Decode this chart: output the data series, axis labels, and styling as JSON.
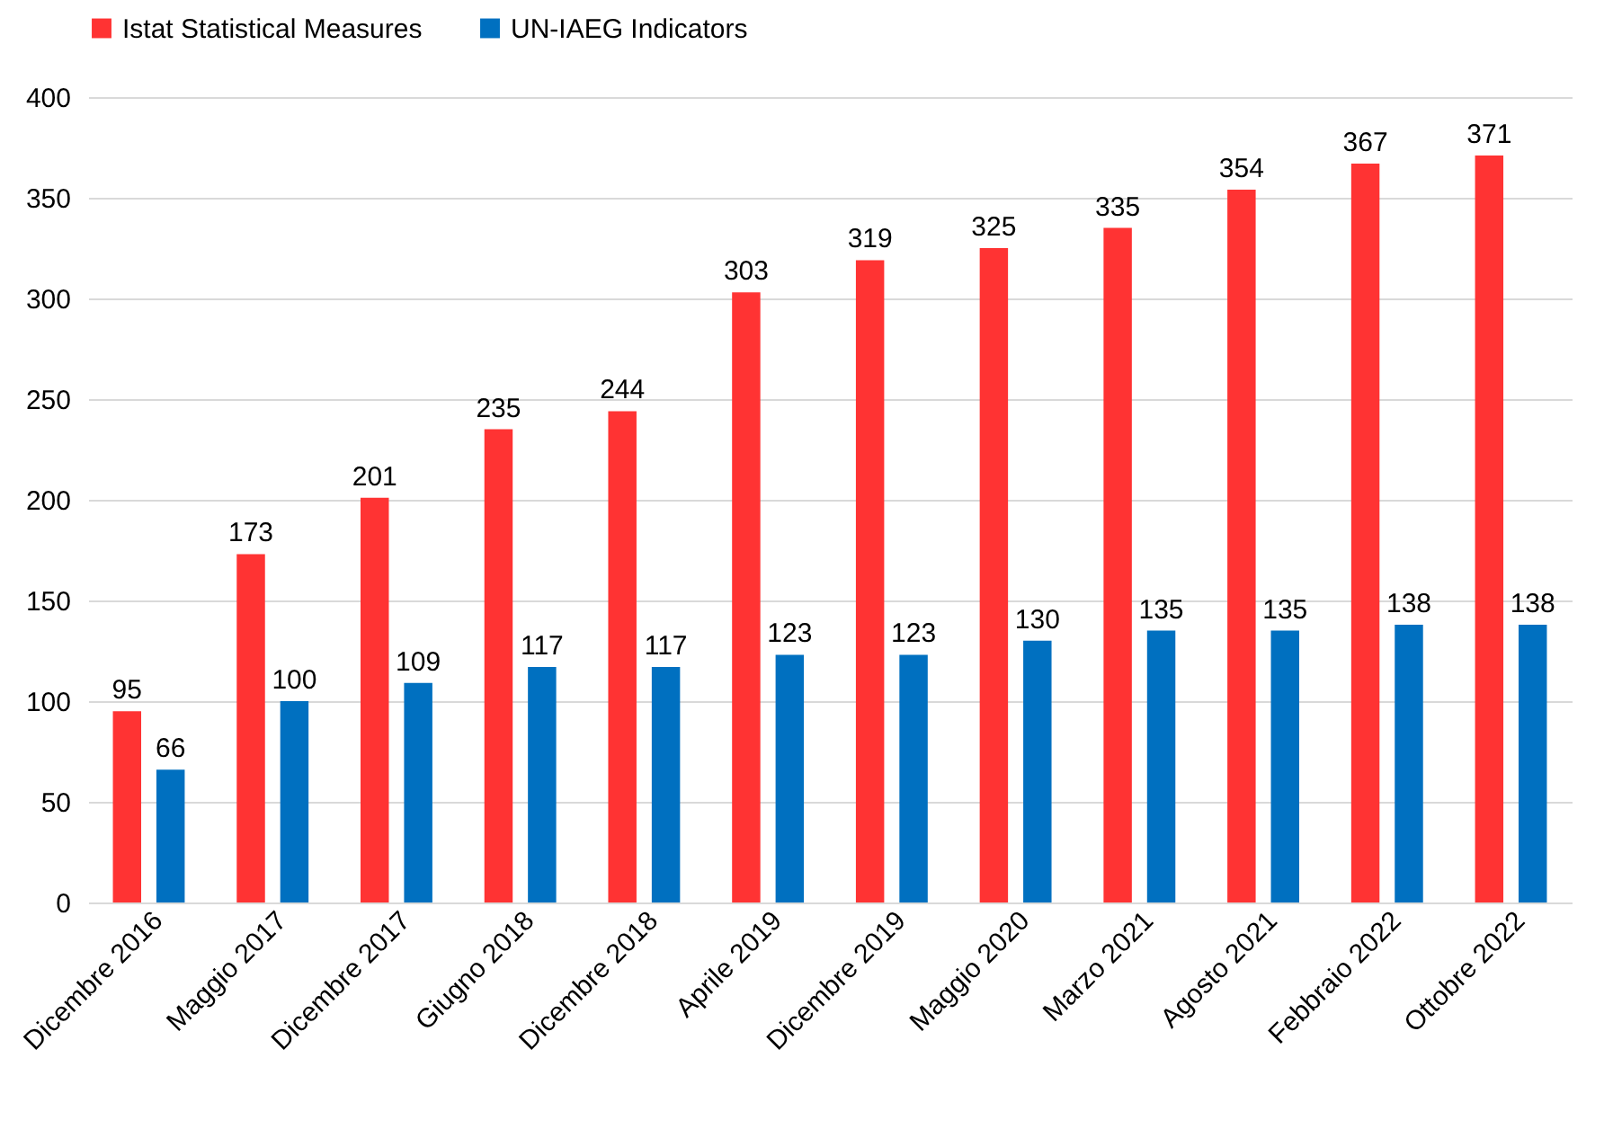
{
  "chart_data": {
    "type": "bar",
    "categories": [
      "Dicembre 2016",
      "Maggio 2017",
      "Dicembre 2017",
      "Giugno 2018",
      "Dicembre 2018",
      "Aprile 2019",
      "Dicembre 2019",
      "Maggio 2020",
      "Marzo 2021",
      "Agosto 2021",
      "Febbraio 2022",
      "Ottobre 2022"
    ],
    "series": [
      {
        "name": "Istat Statistical Measures",
        "color": "#ff3333",
        "values": [
          95,
          173,
          201,
          235,
          244,
          303,
          319,
          325,
          335,
          354,
          367,
          371
        ]
      },
      {
        "name": "UN-IAEG Indicators",
        "color": "#0070c0",
        "values": [
          66,
          100,
          109,
          117,
          117,
          123,
          123,
          130,
          135,
          135,
          138,
          138
        ]
      }
    ],
    "ylim": [
      0,
      400
    ],
    "yticks": [
      0,
      50,
      100,
      150,
      200,
      250,
      300,
      350,
      400
    ],
    "grid": "y",
    "legend": "top",
    "data_labels": true
  }
}
